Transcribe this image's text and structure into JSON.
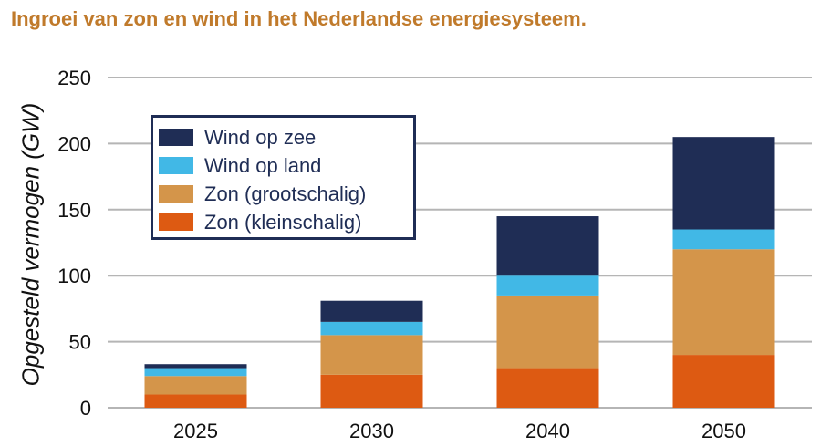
{
  "title": "Ingroei van zon en wind in het Nederlandse energiesysteem.",
  "colors": {
    "title": "#c07a2b",
    "gridline": "#b5b5b5",
    "axis_text": "#111111",
    "legend_border": "#1f2d55"
  },
  "chart_data": {
    "type": "bar",
    "stacked": true,
    "title": "Ingroei van zon en wind in het Nederlandse energiesysteem.",
    "xlabel": "",
    "ylabel": "Opgesteld vermogen (GW)",
    "ylim": [
      0,
      250
    ],
    "yticks": [
      0,
      50,
      100,
      150,
      200,
      250
    ],
    "grid": true,
    "legend_position": "top-left",
    "categories": [
      "2025",
      "2030",
      "2040",
      "2050"
    ],
    "series": [
      {
        "name": "Zon (kleinschalig)",
        "color": "#dd5a12",
        "values": [
          10,
          25,
          30,
          40
        ]
      },
      {
        "name": "Zon (grootschalig)",
        "color": "#d4954a",
        "values": [
          14,
          30,
          55,
          80
        ]
      },
      {
        "name": "Wind op land",
        "color": "#41b8e6",
        "values": [
          6,
          10,
          15,
          15
        ]
      },
      {
        "name": "Wind op zee",
        "color": "#1f2d55",
        "values": [
          3,
          16,
          45,
          70
        ]
      }
    ]
  }
}
